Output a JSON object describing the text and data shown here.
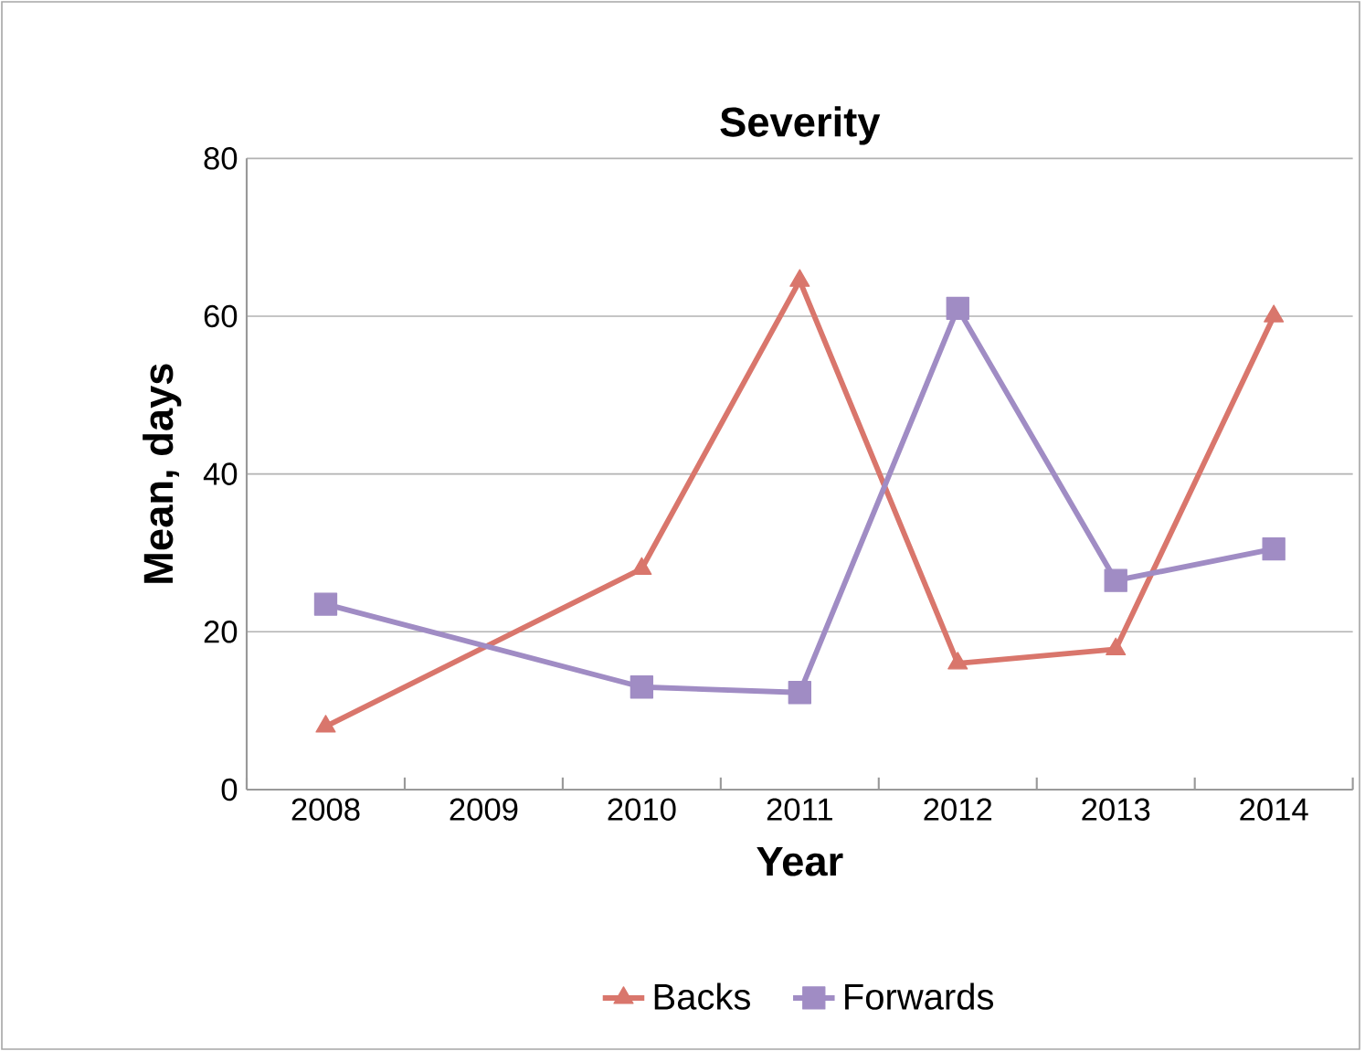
{
  "chart_data": {
    "type": "line",
    "title": "Severity",
    "xlabel": "Year",
    "ylabel": "Mean, days",
    "categories": [
      "2008",
      "2009",
      "2010",
      "2011",
      "2012",
      "2013",
      "2014"
    ],
    "series": [
      {
        "name": "Backs",
        "color": "#d9766c",
        "marker": "triangle",
        "values": [
          8,
          null,
          28,
          64.5,
          16,
          17.8,
          60
        ]
      },
      {
        "name": "Forwards",
        "color": "#a08cc4",
        "marker": "square",
        "values": [
          23.5,
          null,
          13,
          12.3,
          61,
          26.5,
          30.5
        ]
      }
    ],
    "ylim": [
      0,
      80
    ],
    "yticks": [
      0,
      20,
      40,
      60,
      80
    ],
    "grid": "y",
    "legend": "bottom",
    "line_style": "solid"
  }
}
